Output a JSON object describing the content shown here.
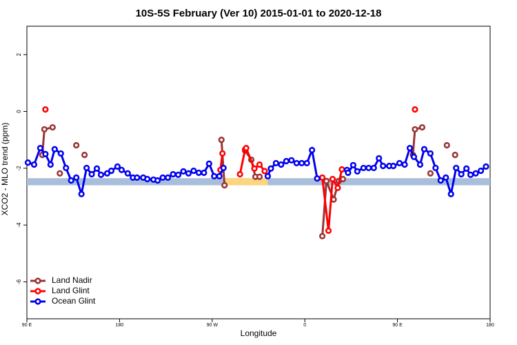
{
  "chart_data": {
    "type": "line",
    "title": "10S-5S February (Ver 10)   2015-01-01 to 2020-12-18",
    "x_label": "Longitude",
    "y_label": "XCO2 - MLO trend (ppm)",
    "xlim": [
      90,
      540
    ],
    "xticks": [
      {
        "value": 90,
        "label": "90 E"
      },
      {
        "value": 180,
        "label": "180"
      },
      {
        "value": 270,
        "label": "90 W"
      },
      {
        "value": 360,
        "label": "0"
      },
      {
        "value": 450,
        "label": "90 E"
      },
      {
        "value": 540,
        "label": "180"
      }
    ],
    "ylim": [
      -7.3,
      3
    ],
    "yticks": [
      2,
      0,
      -2,
      -4,
      -6
    ],
    "legend": "bottom-left",
    "bands": [
      {
        "xmin": 90,
        "xmax": 540,
        "ymin": -2.6,
        "ymax": -2.35,
        "color": "#a8bedb"
      },
      {
        "xmin": 281,
        "xmax": 324,
        "ymin": -2.6,
        "ymax": -2.35,
        "color": "#fbd580"
      }
    ],
    "series": [
      {
        "name": "Land Nadir",
        "color": "#993333",
        "x": [
          105,
          107,
          115,
          null,
          122,
          null,
          138,
          null,
          146,
          null,
          279,
          282,
          null,
          302,
          308,
          312,
          316,
          null,
          377,
          381,
          388,
          393,
          397,
          null,
          465,
          467,
          474,
          null,
          482,
          null,
          498,
          null,
          506
        ],
        "values": [
          -1.53,
          -0.63,
          -0.56,
          null,
          -2.18,
          null,
          -1.19,
          null,
          -1.53,
          null,
          -1.0,
          -2.6,
          null,
          -1.38,
          -1.7,
          -2.3,
          -2.3,
          null,
          -4.39,
          -2.45,
          -3.1,
          -2.45,
          -2.38,
          null,
          -1.53,
          -0.63,
          -0.56,
          null,
          -2.18,
          null,
          -1.19,
          null,
          -1.53
        ]
      },
      {
        "name": "Land Glint",
        "color": "#ff0000",
        "x": [
          108,
          null,
          278,
          280,
          null,
          297,
          302,
          303,
          311,
          316,
          321,
          null,
          377,
          383,
          387,
          392,
          396,
          null,
          467
        ],
        "values": [
          0.07,
          null,
          -2.06,
          -1.48,
          null,
          -2.21,
          -1.34,
          -1.29,
          -2.01,
          -1.87,
          -2.1,
          null,
          -2.33,
          -4.2,
          -2.38,
          -2.69,
          -2.04,
          null,
          0.07
        ]
      },
      {
        "name": "Ocean Glint",
        "color": "#0000ee",
        "x": [
          91,
          97,
          103,
          108,
          113,
          117,
          123,
          128,
          133,
          138,
          143,
          148,
          153,
          158,
          162,
          168,
          172,
          178,
          182,
          188,
          193,
          197,
          203,
          207,
          213,
          217,
          222,
          227,
          232,
          237,
          242,
          247,
          252,
          257,
          262,
          267,
          272,
          277,
          281,
          null,
          324,
          327,
          332,
          337,
          342,
          347,
          352,
          357,
          362,
          367,
          372,
          null,
          401,
          402,
          407,
          411,
          417,
          422,
          427,
          432,
          436,
          442,
          446,
          452,
          457,
          462,
          466,
          472,
          476,
          482,
          487,
          492,
          497,
          502,
          507,
          512,
          517,
          521,
          526,
          531,
          536
        ],
        "values": [
          -1.8,
          -1.87,
          -1.29,
          -1.5,
          -1.87,
          -1.33,
          -1.48,
          -1.99,
          -2.43,
          -2.33,
          -2.91,
          -1.99,
          -2.21,
          -2.01,
          -2.23,
          -2.18,
          -2.09,
          -1.94,
          -2.06,
          -2.18,
          -2.33,
          -2.33,
          -2.33,
          -2.38,
          -2.4,
          -2.43,
          -2.33,
          -2.33,
          -2.21,
          -2.23,
          -2.11,
          -2.18,
          -2.09,
          -2.16,
          -2.16,
          -1.84,
          -2.28,
          -2.28,
          -1.99,
          null,
          -2.28,
          -2.01,
          -1.82,
          -1.87,
          -1.75,
          -1.72,
          -1.82,
          -1.82,
          -1.82,
          -1.36,
          -2.36,
          null,
          -2.06,
          -2.16,
          -1.89,
          -2.11,
          -1.99,
          -1.99,
          -1.99,
          -1.65,
          -1.92,
          -1.92,
          -1.92,
          -1.82,
          -1.87,
          -1.29,
          -1.6,
          -1.87,
          -1.33,
          -1.48,
          -1.99,
          -2.43,
          -2.33,
          -2.91,
          -1.99,
          -2.21,
          -2.01,
          -2.23,
          -2.18,
          -2.09,
          -1.94
        ]
      }
    ]
  }
}
